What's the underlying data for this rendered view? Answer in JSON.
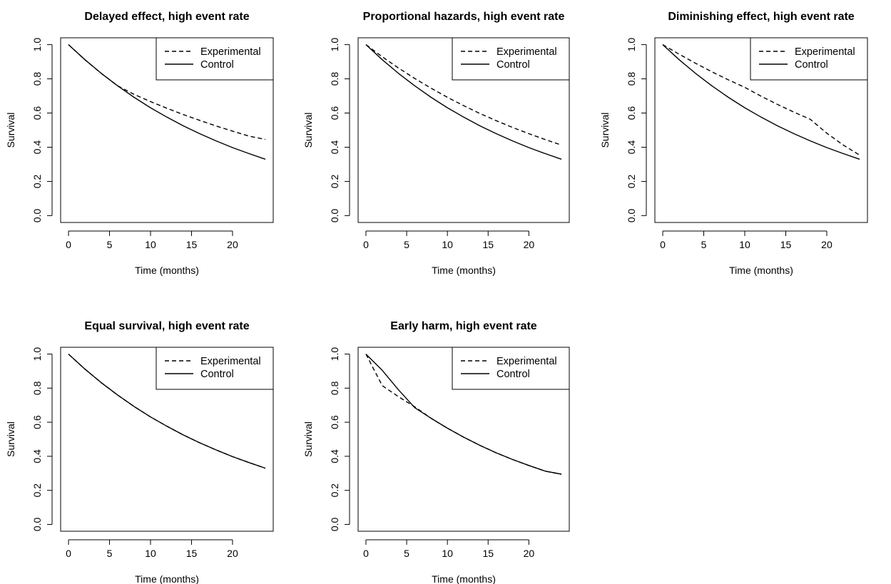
{
  "chart_data": [
    {
      "type": "line",
      "title": "Delayed effect, high event rate",
      "xlabel": "Time (months)",
      "ylabel": "Survival",
      "xlim": [
        0,
        24
      ],
      "ylim": [
        0,
        1
      ],
      "xticks": [
        0,
        5,
        10,
        15,
        20
      ],
      "yticks": [
        0.0,
        0.2,
        0.4,
        0.6,
        0.8,
        1.0
      ],
      "ytick_labels": [
        "0.0",
        "0.2",
        "0.4",
        "0.6",
        "0.8",
        "1.0"
      ],
      "grid": false,
      "legend_position": "top-right",
      "series": [
        {
          "name": "Experimental",
          "line_style": "dashed",
          "x": [
            0,
            2,
            4,
            6,
            8,
            10,
            12,
            14,
            16,
            18,
            20,
            22,
            24
          ],
          "y": [
            1.0,
            0.912,
            0.832,
            0.759,
            0.709,
            0.667,
            0.628,
            0.591,
            0.557,
            0.524,
            0.494,
            0.465,
            0.446
          ]
        },
        {
          "name": "Control",
          "line_style": "solid",
          "x": [
            0,
            2,
            4,
            6,
            8,
            10,
            12,
            14,
            16,
            18,
            20,
            22,
            24
          ],
          "y": [
            1.0,
            0.912,
            0.832,
            0.759,
            0.692,
            0.631,
            0.576,
            0.525,
            0.479,
            0.437,
            0.398,
            0.363,
            0.33
          ]
        }
      ]
    },
    {
      "type": "line",
      "title": "Proportional hazards, high event rate",
      "xlabel": "Time (months)",
      "ylabel": "Survival",
      "xlim": [
        0,
        24
      ],
      "ylim": [
        0,
        1
      ],
      "xticks": [
        0,
        5,
        10,
        15,
        20
      ],
      "yticks": [
        0.0,
        0.2,
        0.4,
        0.6,
        0.8,
        1.0
      ],
      "ytick_labels": [
        "0.0",
        "0.2",
        "0.4",
        "0.6",
        "0.8",
        "1.0"
      ],
      "grid": false,
      "legend_position": "top-right",
      "series": [
        {
          "name": "Experimental",
          "line_style": "dashed",
          "x": [
            0,
            2,
            4,
            6,
            8,
            10,
            12,
            14,
            16,
            18,
            20,
            22,
            24
          ],
          "y": [
            1.0,
            0.929,
            0.863,
            0.802,
            0.745,
            0.692,
            0.643,
            0.597,
            0.555,
            0.516,
            0.479,
            0.445,
            0.413
          ]
        },
        {
          "name": "Control",
          "line_style": "solid",
          "x": [
            0,
            2,
            4,
            6,
            8,
            10,
            12,
            14,
            16,
            18,
            20,
            22,
            24
          ],
          "y": [
            1.0,
            0.912,
            0.832,
            0.759,
            0.692,
            0.631,
            0.576,
            0.525,
            0.479,
            0.437,
            0.398,
            0.363,
            0.33
          ]
        }
      ]
    },
    {
      "type": "line",
      "title": "Diminishing effect, high event rate",
      "xlabel": "Time (months)",
      "ylabel": "Survival",
      "xlim": [
        0,
        24
      ],
      "ylim": [
        0,
        1
      ],
      "xticks": [
        0,
        5,
        10,
        15,
        20
      ],
      "yticks": [
        0.0,
        0.2,
        0.4,
        0.6,
        0.8,
        1.0
      ],
      "ytick_labels": [
        "0.0",
        "0.2",
        "0.4",
        "0.6",
        "0.8",
        "1.0"
      ],
      "grid": false,
      "legend_position": "top-right",
      "series": [
        {
          "name": "Experimental",
          "line_style": "dashed",
          "x": [
            0,
            2,
            4,
            6,
            8,
            10,
            12,
            14,
            16,
            18,
            20,
            22,
            24
          ],
          "y": [
            1.0,
            0.944,
            0.891,
            0.841,
            0.794,
            0.75,
            0.698,
            0.65,
            0.605,
            0.563,
            0.482,
            0.413,
            0.354
          ]
        },
        {
          "name": "Control",
          "line_style": "solid",
          "x": [
            0,
            2,
            4,
            6,
            8,
            10,
            12,
            14,
            16,
            18,
            20,
            22,
            24
          ],
          "y": [
            1.0,
            0.912,
            0.832,
            0.759,
            0.692,
            0.631,
            0.576,
            0.525,
            0.479,
            0.437,
            0.398,
            0.363,
            0.33
          ]
        }
      ]
    },
    {
      "type": "line",
      "title": "Equal survival, high event rate",
      "xlabel": "Time (months)",
      "ylabel": "Survival",
      "xlim": [
        0,
        24
      ],
      "ylim": [
        0,
        1
      ],
      "xticks": [
        0,
        5,
        10,
        15,
        20
      ],
      "yticks": [
        0.0,
        0.2,
        0.4,
        0.6,
        0.8,
        1.0
      ],
      "ytick_labels": [
        "0.0",
        "0.2",
        "0.4",
        "0.6",
        "0.8",
        "1.0"
      ],
      "grid": false,
      "legend_position": "top-right",
      "series": [
        {
          "name": "Experimental",
          "line_style": "dashed",
          "x": [
            0,
            2,
            4,
            6,
            8,
            10,
            12,
            14,
            16,
            18,
            20,
            22,
            24
          ],
          "y": [
            1.0,
            0.912,
            0.832,
            0.759,
            0.692,
            0.631,
            0.576,
            0.525,
            0.479,
            0.437,
            0.398,
            0.363,
            0.33
          ]
        },
        {
          "name": "Control",
          "line_style": "solid",
          "x": [
            0,
            2,
            4,
            6,
            8,
            10,
            12,
            14,
            16,
            18,
            20,
            22,
            24
          ],
          "y": [
            1.0,
            0.912,
            0.832,
            0.759,
            0.692,
            0.631,
            0.576,
            0.525,
            0.479,
            0.437,
            0.398,
            0.363,
            0.33
          ]
        }
      ]
    },
    {
      "type": "line",
      "title": "Early harm, high event rate",
      "xlabel": "Time (months)",
      "ylabel": "Survival",
      "xlim": [
        0,
        24
      ],
      "ylim": [
        0,
        1
      ],
      "xticks": [
        0,
        5,
        10,
        15,
        20
      ],
      "yticks": [
        0.0,
        0.2,
        0.4,
        0.6,
        0.8,
        1.0
      ],
      "ytick_labels": [
        "0.0",
        "0.2",
        "0.4",
        "0.6",
        "0.8",
        "1.0"
      ],
      "grid": false,
      "legend_position": "top-right",
      "series": [
        {
          "name": "Experimental",
          "line_style": "dashed",
          "x": [
            0,
            2,
            4,
            6,
            8,
            10,
            12,
            14,
            16,
            18,
            20,
            22,
            24
          ],
          "y": [
            1.0,
            0.815,
            0.75,
            0.69,
            0.623,
            0.565,
            0.512,
            0.464,
            0.42,
            0.381,
            0.346,
            0.313,
            0.295
          ]
        },
        {
          "name": "Control",
          "line_style": "solid",
          "x": [
            0,
            2,
            4,
            6,
            8,
            10,
            12,
            14,
            16,
            18,
            20,
            22,
            24
          ],
          "y": [
            1.0,
            0.905,
            0.79,
            0.685,
            0.623,
            0.565,
            0.512,
            0.464,
            0.42,
            0.381,
            0.346,
            0.313,
            0.295
          ]
        }
      ]
    }
  ]
}
